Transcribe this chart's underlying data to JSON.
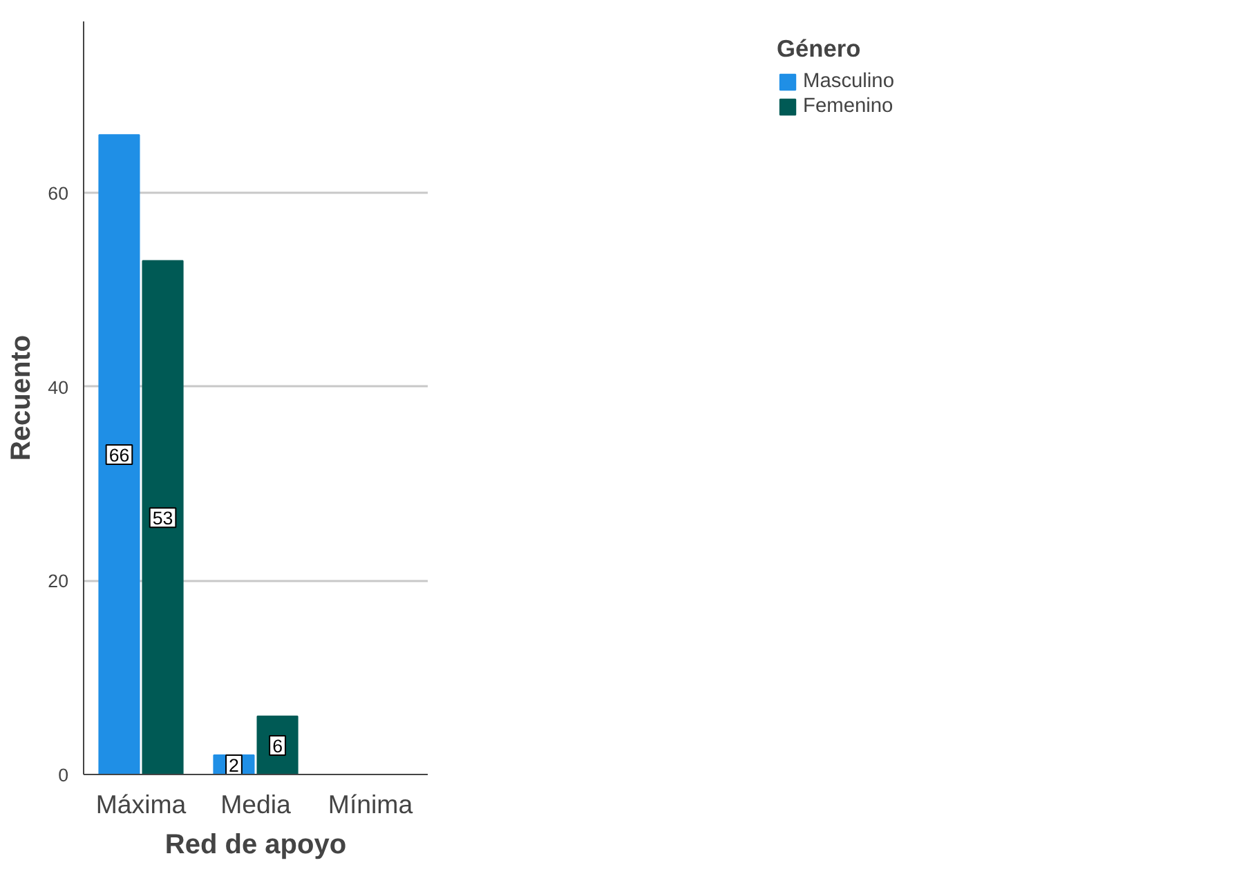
{
  "chart_data": {
    "type": "bar",
    "xlabel": "Red de apoyo",
    "ylabel": "Recuento",
    "legend_title": "Género",
    "categories": [
      "Máxima",
      "Media",
      "Mínima"
    ],
    "series": [
      {
        "name": "Masculino",
        "color": "#1f8fe6",
        "values": [
          66,
          2,
          null
        ]
      },
      {
        "name": "Femenino",
        "color": "#005a55",
        "values": [
          53,
          6,
          null
        ]
      }
    ],
    "ylim": [
      0,
      77.7
    ],
    "yticks": [
      0,
      20,
      40,
      60
    ],
    "grid": "y",
    "legend": "top right",
    "data_labels": true
  }
}
